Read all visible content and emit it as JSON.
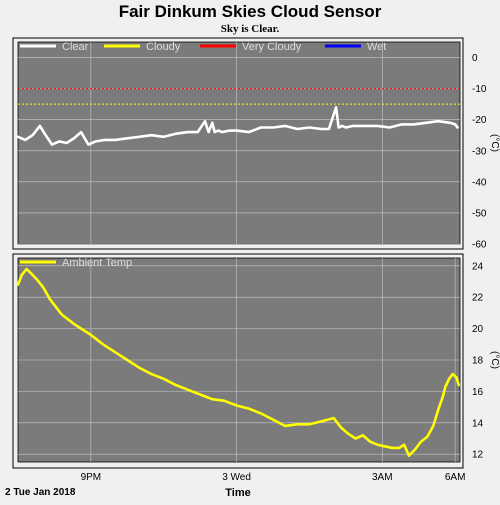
{
  "page": {
    "title": "Fair Dinkum Skies Cloud Sensor",
    "subtitle": "Sky is Clear.",
    "date_label": "2 Tue Jan 2018",
    "x_axis_label": "Time"
  },
  "colors": {
    "background": "#f0f0f0",
    "plot_bg": "#7b7b7b",
    "grid": "#c8c8c8",
    "clear": "#ffffff",
    "cloudy": "#ffff00",
    "very_cloudy": "#ff0000",
    "wet": "#0000ff",
    "temp": "#ffff00"
  },
  "chart_data": [
    {
      "type": "line",
      "ylabel": "(°C)",
      "ylim": [
        -60,
        5
      ],
      "xlim": [
        18,
        36.2
      ],
      "x_ticks": [
        {
          "x": 21,
          "label": "9PM"
        },
        {
          "x": 27,
          "label": "3 Wed"
        },
        {
          "x": 33,
          "label": "3AM"
        }
      ],
      "y_ticks": [
        0,
        -10,
        -20,
        -30,
        -40,
        -50,
        -60
      ],
      "y_tick_labels": [
        "0",
        "-10",
        "-20",
        "-30",
        "-40",
        "-50",
        "-60"
      ],
      "legend": [
        "Clear",
        "Cloudy",
        "Very Cloudy",
        "Wet"
      ],
      "legend_placement": "top-left",
      "thresholds": [
        {
          "name": "Very Cloudy",
          "value": -10
        },
        {
          "name": "Cloudy",
          "value": -15
        }
      ],
      "series": [
        {
          "name": "Clear",
          "x": [
            18.0,
            18.3,
            18.6,
            18.9,
            19.1,
            19.4,
            19.7,
            20.0,
            20.3,
            20.6,
            20.9,
            21.2,
            21.6,
            22.0,
            22.5,
            23.0,
            23.5,
            24.0,
            24.5,
            25.0,
            25.4,
            25.7,
            25.85,
            26.0,
            26.1,
            26.25,
            26.4,
            26.7,
            27.0,
            27.5,
            28.0,
            28.5,
            29.0,
            29.5,
            30.0,
            30.5,
            30.8,
            31.1,
            31.2,
            31.35,
            31.5,
            31.8,
            32.3,
            32.8,
            33.3,
            33.8,
            34.3,
            34.8,
            35.3,
            35.8,
            36.0,
            36.1
          ],
          "y": [
            -25.5,
            -26.5,
            -25.0,
            -22.0,
            -24.5,
            -28.0,
            -27.0,
            -27.5,
            -26.0,
            -24.0,
            -28.0,
            -27.0,
            -26.5,
            -26.5,
            -26.0,
            -25.5,
            -25.0,
            -25.5,
            -24.5,
            -24.0,
            -24.0,
            -20.5,
            -24.0,
            -21.0,
            -24.0,
            -23.5,
            -24.0,
            -23.5,
            -23.5,
            -24.0,
            -22.5,
            -22.5,
            -22.0,
            -23.0,
            -22.5,
            -23.0,
            -23.0,
            -16.0,
            -22.5,
            -22.0,
            -22.5,
            -22.0,
            -22.0,
            -22.0,
            -22.5,
            -21.5,
            -21.5,
            -21.0,
            -20.5,
            -21.0,
            -21.5,
            -22.5
          ]
        }
      ]
    },
    {
      "type": "line",
      "ylabel": "(°C)",
      "ylim": [
        11.5,
        24.5
      ],
      "xlim": [
        18,
        36.2
      ],
      "x_ticks": [
        {
          "x": 21,
          "label": "9PM"
        },
        {
          "x": 27,
          "label": "3 Wed"
        },
        {
          "x": 33,
          "label": "3AM"
        },
        {
          "x": 36,
          "label": "6AM"
        }
      ],
      "y_ticks": [
        12,
        14,
        16,
        18,
        20,
        22,
        24
      ],
      "y_tick_labels": [
        "12",
        "14",
        "16",
        "18",
        "20",
        "22",
        "24"
      ],
      "legend": [
        "Ambient Temp"
      ],
      "legend_placement": "top-left",
      "series": [
        {
          "name": "Ambient Temp",
          "x": [
            18.0,
            18.15,
            18.35,
            18.55,
            18.8,
            19.05,
            19.3,
            19.55,
            19.8,
            20.05,
            20.3,
            20.6,
            21.0,
            21.5,
            22.0,
            22.5,
            23.0,
            23.5,
            24.0,
            24.5,
            25.0,
            25.5,
            26.0,
            26.5,
            27.0,
            27.5,
            28.0,
            28.5,
            29.0,
            29.5,
            30.0,
            30.5,
            31.0,
            31.3,
            31.6,
            31.9,
            32.2,
            32.5,
            32.8,
            33.1,
            33.4,
            33.7,
            33.9,
            34.1,
            34.35,
            34.6,
            34.85,
            35.1,
            35.3,
            35.5,
            35.6,
            35.75,
            35.9,
            36.05,
            36.15
          ],
          "y": [
            22.8,
            23.4,
            23.8,
            23.5,
            23.1,
            22.6,
            21.9,
            21.4,
            20.9,
            20.6,
            20.3,
            20.0,
            19.6,
            19.0,
            18.5,
            18.0,
            17.5,
            17.1,
            16.8,
            16.4,
            16.1,
            15.8,
            15.5,
            15.4,
            15.1,
            14.9,
            14.6,
            14.2,
            13.8,
            13.9,
            13.9,
            14.1,
            14.3,
            13.7,
            13.3,
            13.0,
            13.2,
            12.8,
            12.6,
            12.5,
            12.4,
            12.4,
            12.6,
            11.9,
            12.3,
            12.8,
            13.1,
            13.8,
            14.8,
            15.7,
            16.3,
            16.8,
            17.1,
            16.9,
            16.4
          ]
        }
      ]
    }
  ]
}
